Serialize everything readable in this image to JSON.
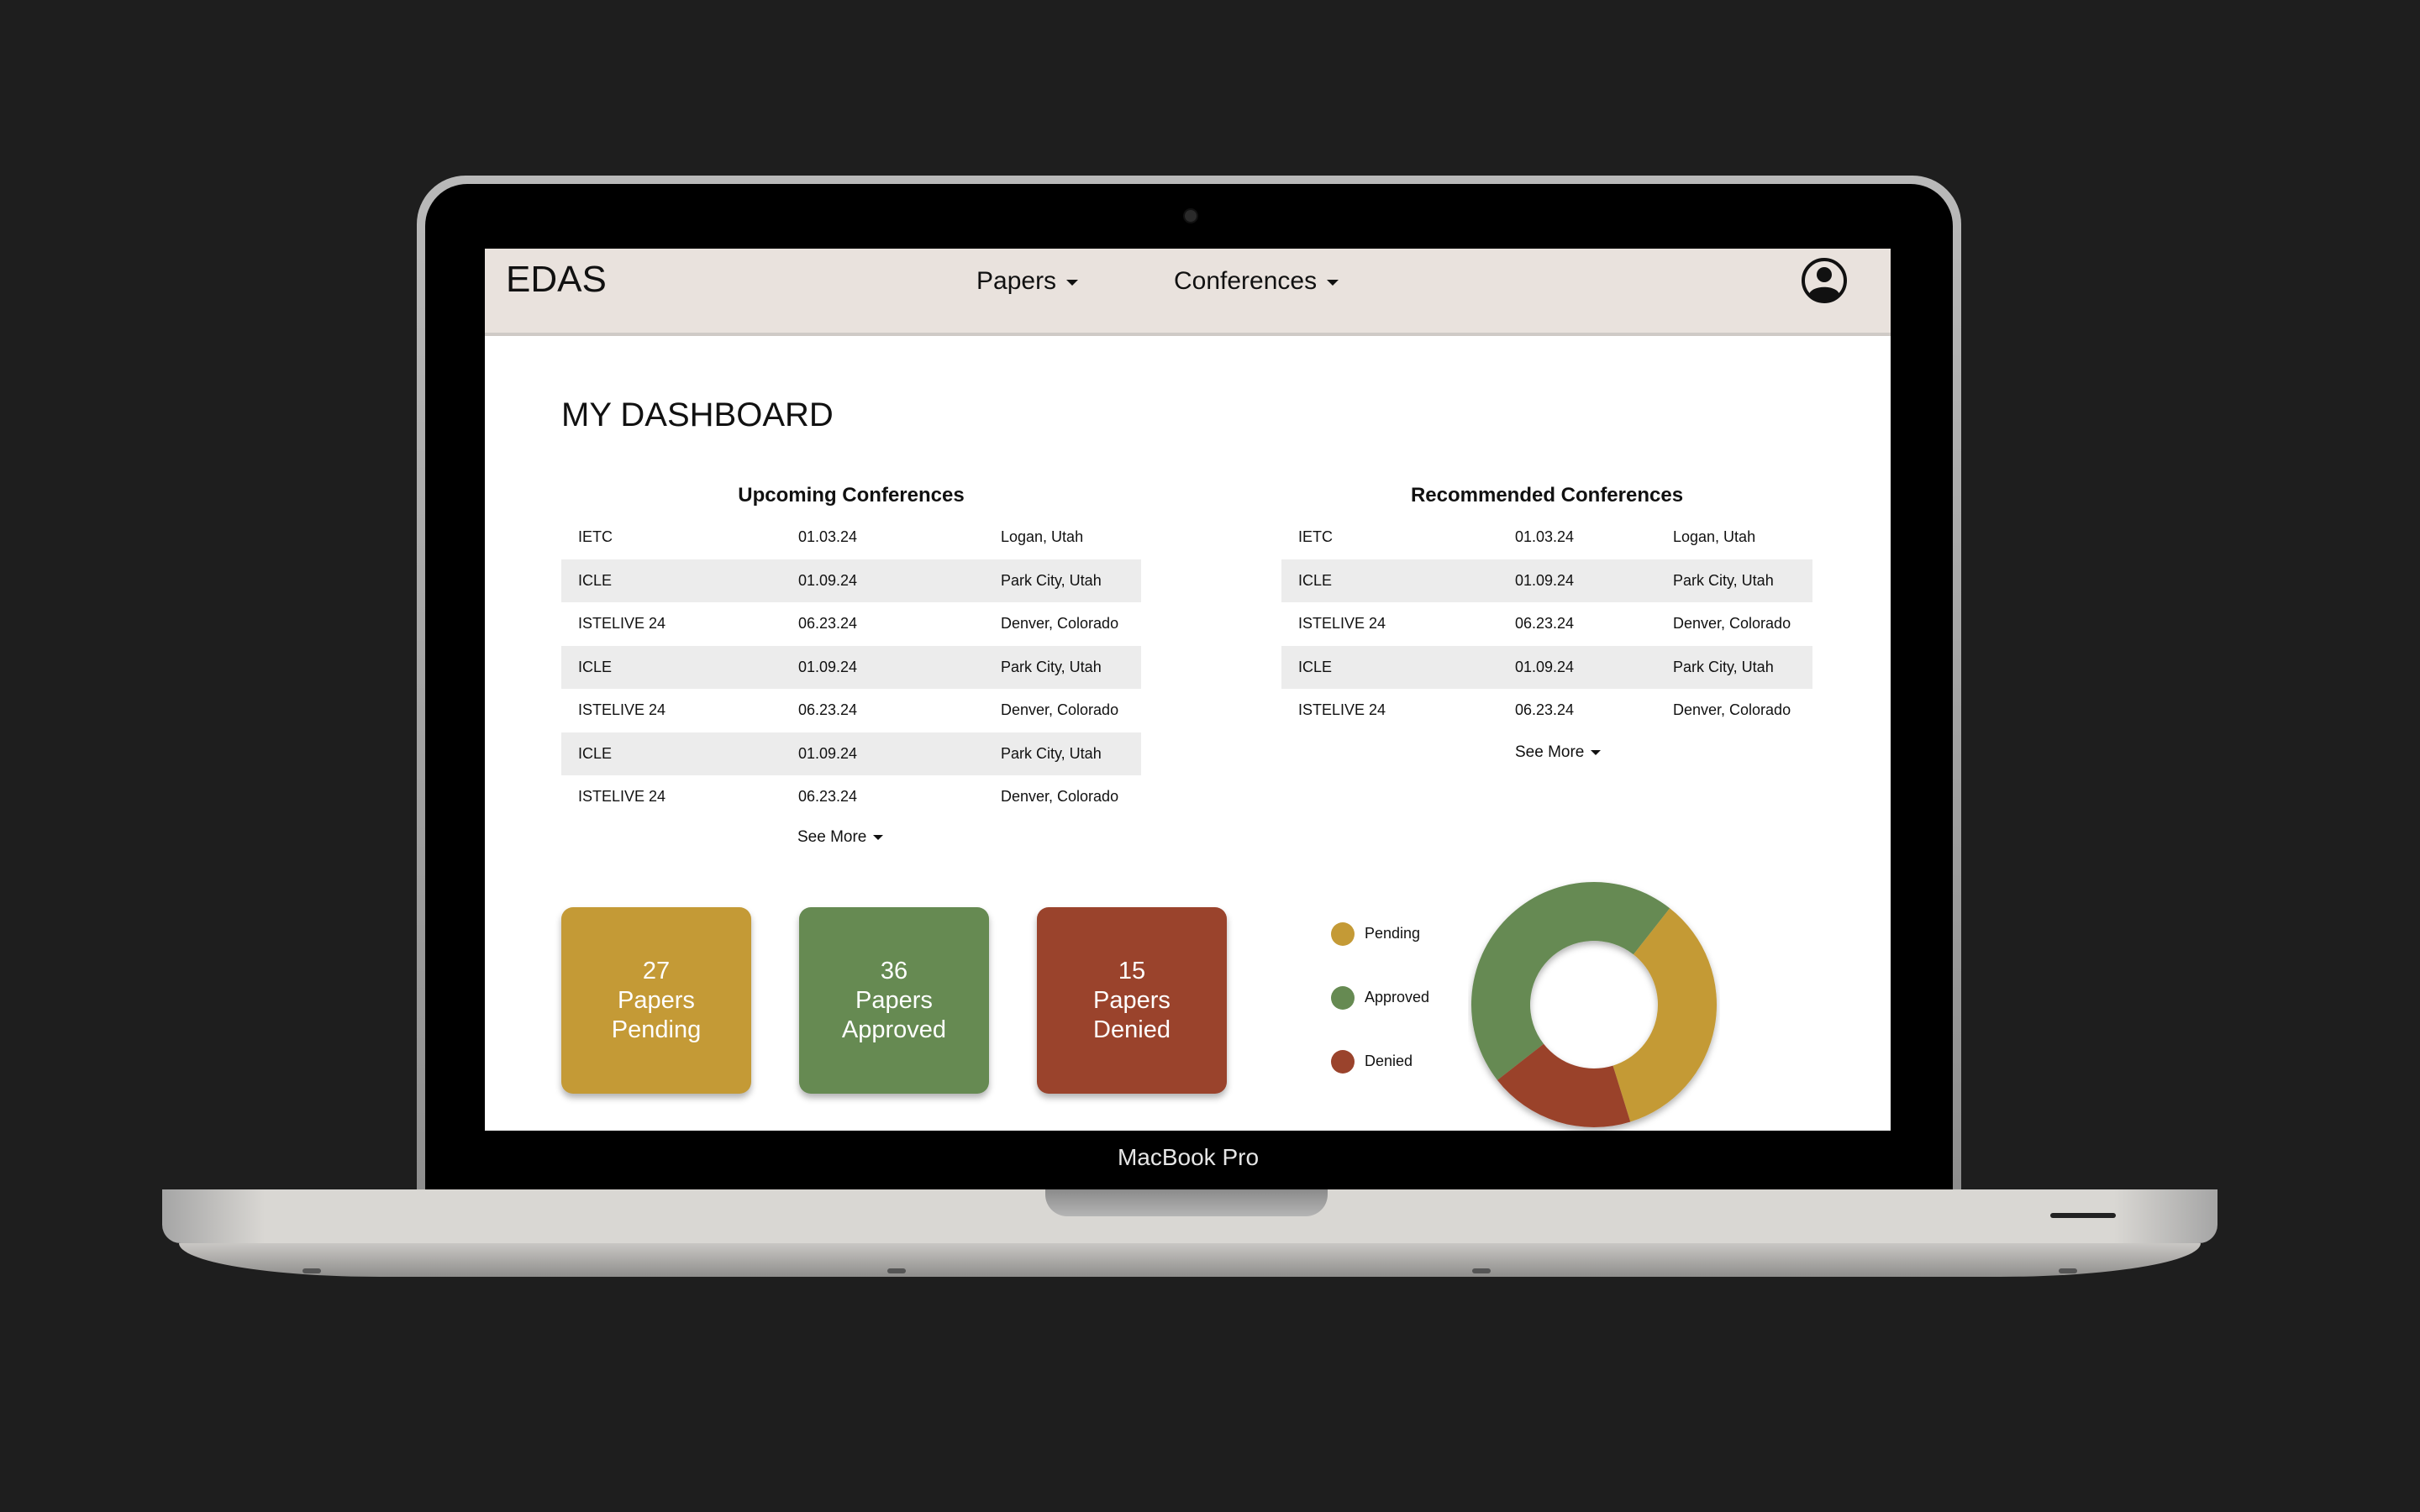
{
  "device": {
    "model_label": "MacBook Pro"
  },
  "header": {
    "logo": "EDAS",
    "nav": [
      {
        "label": "Papers"
      },
      {
        "label": "Conferences"
      }
    ],
    "profile_icon": "user-circle-icon"
  },
  "page_title": "MY DASHBOARD",
  "upcoming": {
    "title": "Upcoming Conferences",
    "rows": [
      {
        "name": "IETC",
        "date": "01.03.24",
        "location": "Logan, Utah"
      },
      {
        "name": "ICLE",
        "date": "01.09.24",
        "location": "Park City, Utah"
      },
      {
        "name": "ISTELIVE 24",
        "date": "06.23.24",
        "location": "Denver, Colorado"
      },
      {
        "name": "ICLE",
        "date": "01.09.24",
        "location": "Park City, Utah"
      },
      {
        "name": "ISTELIVE 24",
        "date": "06.23.24",
        "location": "Denver, Colorado"
      },
      {
        "name": "ICLE",
        "date": "01.09.24",
        "location": "Park City, Utah"
      },
      {
        "name": "ISTELIVE 24",
        "date": "06.23.24",
        "location": "Denver, Colorado"
      }
    ],
    "see_more": "See More"
  },
  "recommended": {
    "title": "Recommended Conferences",
    "rows": [
      {
        "name": "IETC",
        "date": "01.03.24",
        "location": "Logan, Utah"
      },
      {
        "name": "ICLE",
        "date": "01.09.24",
        "location": "Park City, Utah"
      },
      {
        "name": "ISTELIVE 24",
        "date": "06.23.24",
        "location": "Denver, Colorado"
      },
      {
        "name": "ICLE",
        "date": "01.09.24",
        "location": "Park City, Utah"
      },
      {
        "name": "ISTELIVE 24",
        "date": "06.23.24",
        "location": "Denver, Colorado"
      }
    ],
    "see_more": "See More"
  },
  "stats": [
    {
      "count": "27",
      "line1": "Papers",
      "line2": "Pending",
      "color": "#c49a36"
    },
    {
      "count": "36",
      "line1": "Papers",
      "line2": "Approved",
      "color": "#668a52"
    },
    {
      "count": "15",
      "line1": "Papers",
      "line2": "Denied",
      "color": "#9a432c"
    }
  ],
  "chart_data": {
    "type": "pie",
    "donut": true,
    "legend": "left",
    "categories": [
      "Pending",
      "Approved",
      "Denied"
    ],
    "values": [
      27,
      36,
      15
    ],
    "colors": [
      "#c49a36",
      "#668a52",
      "#9a432c"
    ]
  }
}
